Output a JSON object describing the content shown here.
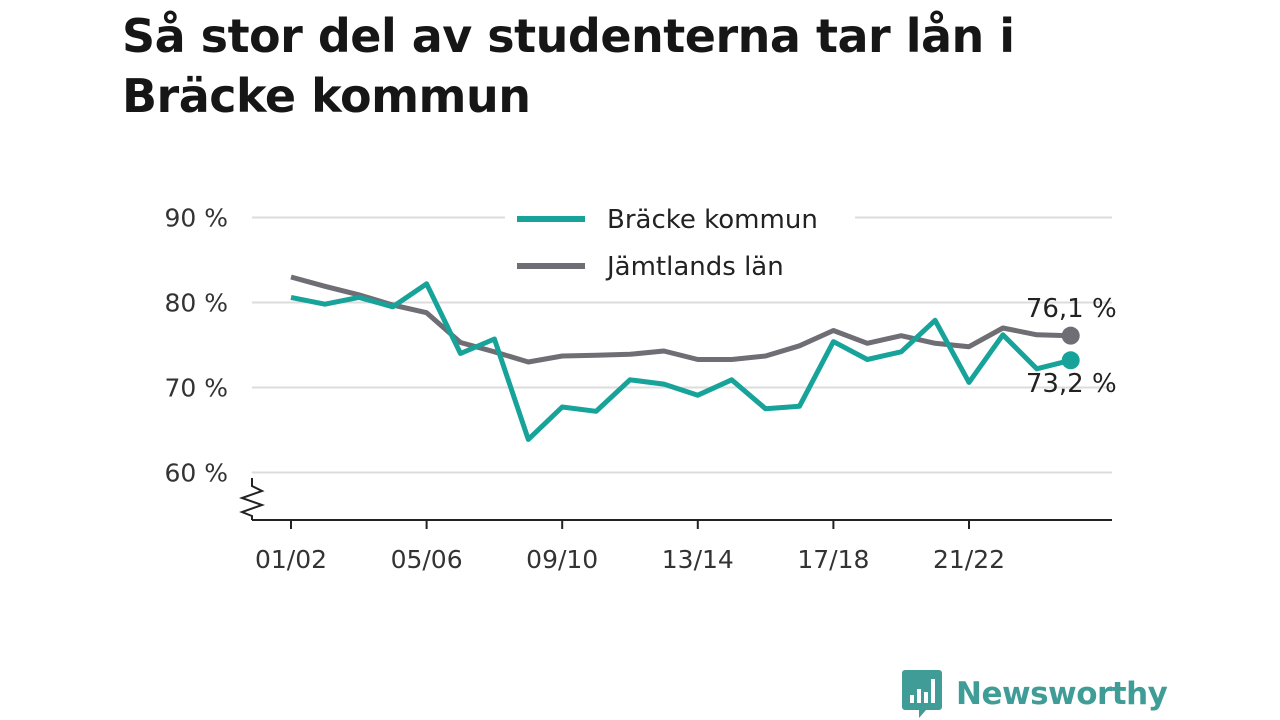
{
  "title": "Så stor del av studenterna tar lån i Bräcke kommun",
  "brand": {
    "name": "Newsworthy",
    "color": "#3f9c97"
  },
  "chart_data": {
    "type": "line",
    "title": "Så stor del av studenterna tar lån i Bräcke kommun",
    "x": [
      "01/02",
      "02/03",
      "03/04",
      "04/05",
      "05/06",
      "06/07",
      "07/08",
      "08/09",
      "09/10",
      "10/11",
      "11/12",
      "12/13",
      "13/14",
      "14/15",
      "15/16",
      "16/17",
      "17/18",
      "18/19",
      "19/20",
      "20/21",
      "21/22",
      "22/23",
      "23/24",
      "24/25"
    ],
    "x_tick_labels": [
      "01/02",
      "05/06",
      "09/10",
      "13/14",
      "17/18",
      "21/22"
    ],
    "y_tick_labels": [
      "60 %",
      "70 %",
      "80 %",
      "90 %"
    ],
    "y_ticks": [
      60,
      70,
      80,
      90
    ],
    "ylim": [
      55,
      92
    ],
    "y_axis_break": true,
    "grid": true,
    "legend_position": "top",
    "xlabel": "",
    "ylabel": "",
    "series": [
      {
        "name": "Bräcke kommun",
        "color": "#17a399",
        "values": [
          80.6,
          79.8,
          80.6,
          79.5,
          82.2,
          74.0,
          75.7,
          63.9,
          67.7,
          67.2,
          70.9,
          70.4,
          69.1,
          70.9,
          67.5,
          67.8,
          75.4,
          73.3,
          74.2,
          77.9,
          70.6,
          76.2,
          72.2,
          73.2
        ],
        "end_label": "73,2 %"
      },
      {
        "name": "Jämtlands län",
        "color": "#6f6e75",
        "values": [
          83.0,
          81.9,
          80.9,
          79.7,
          78.8,
          75.3,
          74.2,
          73.0,
          73.7,
          73.8,
          73.9,
          74.3,
          73.3,
          73.3,
          73.7,
          74.9,
          76.7,
          75.2,
          76.1,
          75.2,
          74.8,
          77.0,
          76.2,
          76.1
        ],
        "end_label": "76,1 %"
      }
    ]
  }
}
